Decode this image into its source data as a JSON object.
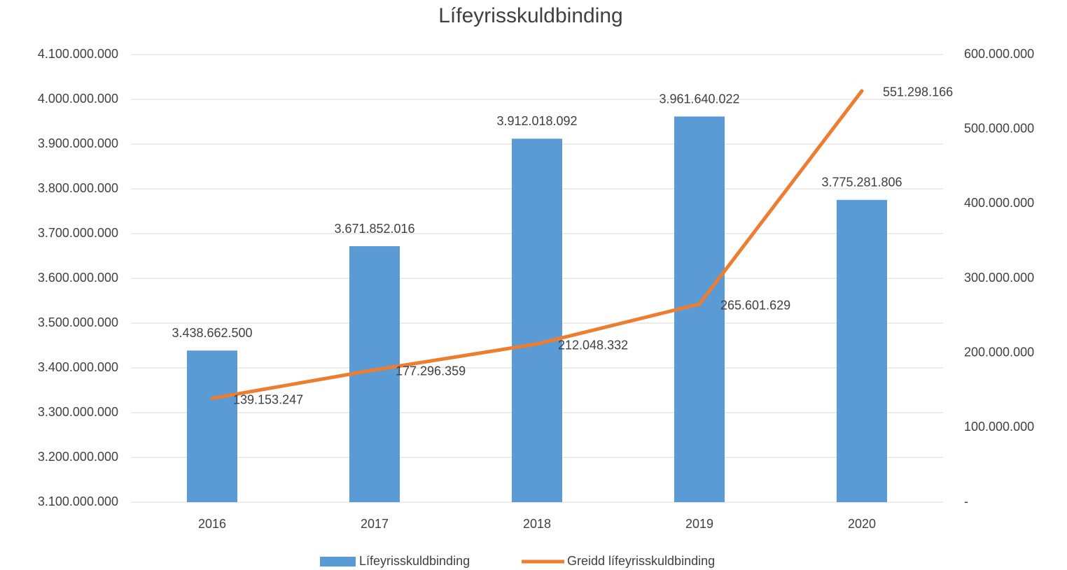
{
  "chart_data": {
    "type": "bar",
    "title": "Lífeyrisskuldbinding",
    "categories": [
      "2016",
      "2017",
      "2018",
      "2019",
      "2020"
    ],
    "series": [
      {
        "name": "Lífeyrisskuldbinding",
        "type": "bar",
        "color": "#5b9bd5",
        "values": [
          3438662500,
          3671852016,
          3912018092,
          3961640022,
          3775281806
        ],
        "value_labels": [
          "3.438.662.500",
          "3.671.852.016",
          "3.912.018.092",
          "3.961.640.022",
          "3.775.281.806"
        ]
      },
      {
        "name": "Greidd lífeyrisskuldbinding",
        "type": "line",
        "axis": "y2",
        "color": "#ed7d31",
        "values": [
          139153247,
          177296359,
          212048332,
          265601629,
          551298166
        ],
        "value_labels": [
          "139.153.247",
          "177.296.359",
          "212.048.332",
          "265.601.629",
          "551.298.166"
        ]
      }
    ],
    "ylim": [
      3100000000,
      4100000000
    ],
    "yticks": [
      {
        "value": 3100000000,
        "label": "3.100.000.000"
      },
      {
        "value": 3200000000,
        "label": "3.200.000.000"
      },
      {
        "value": 3300000000,
        "label": "3.300.000.000"
      },
      {
        "value": 3400000000,
        "label": "3.400.000.000"
      },
      {
        "value": 3500000000,
        "label": "3.500.000.000"
      },
      {
        "value": 3600000000,
        "label": "3.600.000.000"
      },
      {
        "value": 3700000000,
        "label": "3.700.000.000"
      },
      {
        "value": 3800000000,
        "label": "3.800.000.000"
      },
      {
        "value": 3900000000,
        "label": "3.900.000.000"
      },
      {
        "value": 4000000000,
        "label": "4.000.000.000"
      },
      {
        "value": 4100000000,
        "label": "4.100.000.000"
      }
    ],
    "y2lim": [
      0,
      600000000
    ],
    "y2ticks": [
      {
        "value": 0,
        "label": "-"
      },
      {
        "value": 100000000,
        "label": "100.000.000"
      },
      {
        "value": 200000000,
        "label": "200.000.000"
      },
      {
        "value": 300000000,
        "label": "300.000.000"
      },
      {
        "value": 400000000,
        "label": "400.000.000"
      },
      {
        "value": 500000000,
        "label": "500.000.000"
      },
      {
        "value": 600000000,
        "label": "600.000.000"
      }
    ],
    "grid": true,
    "legend": "bottom"
  }
}
